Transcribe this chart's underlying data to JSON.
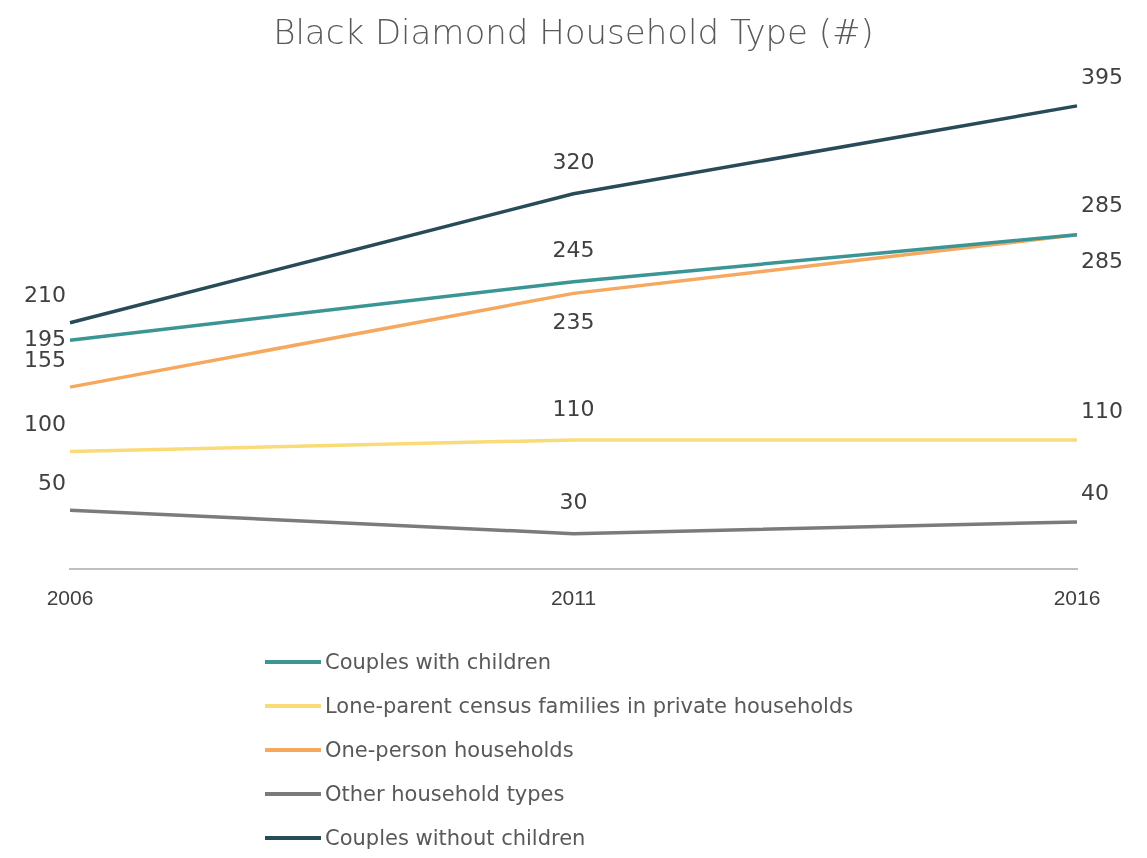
{
  "chart_data": {
    "type": "line",
    "title": "Black Diamond Household Type (#)",
    "categories": [
      "2006",
      "2011",
      "2016"
    ],
    "series": [
      {
        "name": "Couples with children",
        "color": "#3a9594",
        "values": [
          195,
          245,
          285
        ]
      },
      {
        "name": "Lone-parent census families in private households",
        "color": "#f9dc78",
        "values": [
          100,
          110,
          110
        ]
      },
      {
        "name": "One-person households",
        "color": "#f6a85f",
        "values": [
          155,
          235,
          285
        ]
      },
      {
        "name": "Other household types",
        "color": "#7b7b7b",
        "values": [
          50,
          30,
          40
        ]
      },
      {
        "name": "Couples without children",
        "color": "#274b57",
        "values": [
          210,
          320,
          395
        ]
      }
    ],
    "data_labels": true,
    "legend": "bottom",
    "grid": false,
    "marker": "none",
    "line_style": "solid"
  }
}
